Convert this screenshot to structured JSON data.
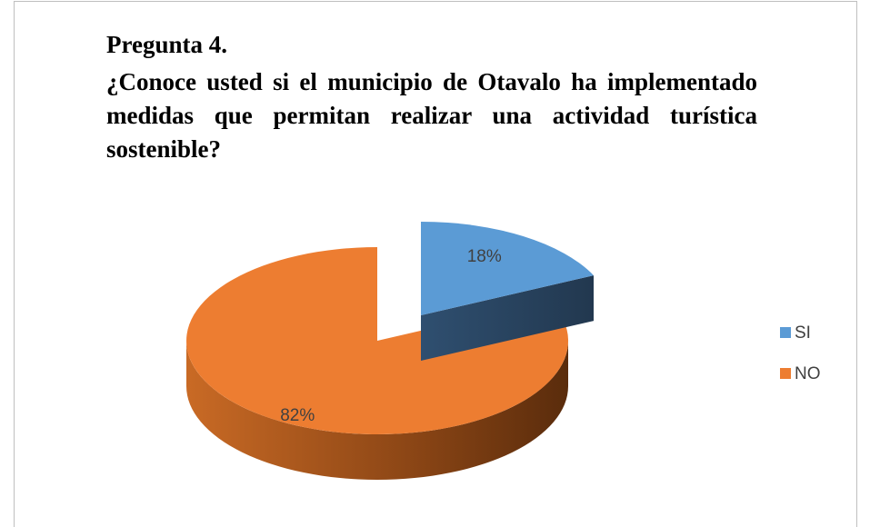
{
  "chart_data": {
    "type": "pie",
    "title": "Pregunta 4.",
    "subtitle": "¿Conoce usted si el municipio de Otavalo ha implementado medidas que permitan realizar una actividad turística sostenible?",
    "categories": [
      "SI",
      "NO"
    ],
    "values": [
      18,
      82
    ],
    "value_labels": [
      "18%",
      "82%"
    ],
    "colors": [
      "#5b9bd5",
      "#ed7d31"
    ],
    "legend": "right"
  }
}
